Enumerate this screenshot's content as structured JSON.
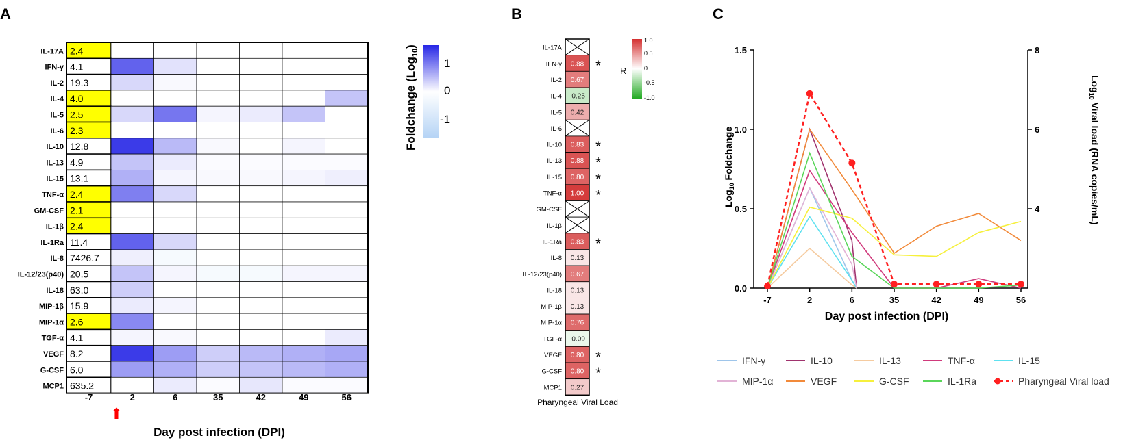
{
  "chart_data": [
    {
      "panel_label": "A",
      "type": "heatmap",
      "xlabel": "Day post infection (DPI)",
      "first_column_label": "-7",
      "columns": [
        "2",
        "6",
        "35",
        "42",
        "49",
        "56"
      ],
      "colorbar": {
        "title": "Foldchange (Log",
        "title_sub": "10",
        "title_end": ")",
        "ticks": [
          "1",
          "0",
          "-1"
        ],
        "range": [
          -1.5,
          1.5
        ]
      },
      "yellow_color": "#ffff00",
      "rows": [
        {
          "name": "IL-17A",
          "baseline": "2.4",
          "highlight": true,
          "values": [
            0,
            0,
            0,
            0,
            0,
            0
          ]
        },
        {
          "name": "IFN-γ",
          "baseline": "4.1",
          "highlight": false,
          "values": [
            0.8,
            0.15,
            0,
            0,
            0,
            0
          ]
        },
        {
          "name": "IL-2",
          "baseline": "19.3",
          "highlight": false,
          "values": [
            0.2,
            0.03,
            0,
            0,
            0,
            0
          ]
        },
        {
          "name": "IL-4",
          "baseline": "4.0",
          "highlight": true,
          "values": [
            0,
            0,
            0,
            0,
            0,
            0.3
          ]
        },
        {
          "name": "IL-5",
          "baseline": "2.5",
          "highlight": true,
          "values": [
            0.2,
            0.7,
            0.05,
            0.1,
            0.3,
            0
          ]
        },
        {
          "name": "IL-6",
          "baseline": "2.3",
          "highlight": true,
          "values": [
            0,
            0,
            0,
            0,
            0,
            0
          ]
        },
        {
          "name": "IL-10",
          "baseline": "12.8",
          "highlight": false,
          "values": [
            1.0,
            0.35,
            0.03,
            0,
            0.05,
            0
          ]
        },
        {
          "name": "IL-13",
          "baseline": "4.9",
          "highlight": false,
          "values": [
            0.3,
            0.1,
            0.02,
            0.02,
            0.02,
            0.02
          ]
        },
        {
          "name": "IL-15",
          "baseline": "13.1",
          "highlight": false,
          "values": [
            0.4,
            0.05,
            0.03,
            0.03,
            0.05,
            0.08
          ]
        },
        {
          "name": "TNF-α",
          "baseline": "2.4",
          "highlight": true,
          "values": [
            0.65,
            0.2,
            0,
            0,
            0,
            0
          ]
        },
        {
          "name": "GM-CSF",
          "baseline": "2.1",
          "highlight": true,
          "values": [
            0,
            0,
            0,
            0,
            0,
            0
          ]
        },
        {
          "name": "IL-1β",
          "baseline": "2.4",
          "highlight": true,
          "values": [
            0,
            0,
            0,
            0,
            0,
            0
          ]
        },
        {
          "name": "IL-1Ra",
          "baseline": "11.4",
          "highlight": false,
          "values": [
            0.8,
            0.2,
            0,
            0,
            0,
            0
          ]
        },
        {
          "name": "IL-8",
          "baseline": "7426.7",
          "highlight": false,
          "values": [
            0.08,
            -0.15,
            0,
            0,
            0,
            0
          ]
        },
        {
          "name": "IL-12/23(p40)",
          "baseline": "20.5",
          "highlight": false,
          "values": [
            0.3,
            0.05,
            -0.15,
            -0.15,
            0.05,
            0.05
          ]
        },
        {
          "name": "IL-18",
          "baseline": "63.0",
          "highlight": false,
          "values": [
            0.25,
            0,
            0,
            0,
            0,
            0
          ]
        },
        {
          "name": "MIP-1β",
          "baseline": "15.9",
          "highlight": false,
          "values": [
            0.1,
            0.05,
            0,
            0,
            0,
            0
          ]
        },
        {
          "name": "MIP-1α",
          "baseline": "2.6",
          "highlight": true,
          "values": [
            0.6,
            0,
            0,
            0,
            0,
            0
          ]
        },
        {
          "name": "TGF-α",
          "baseline": "4.1",
          "highlight": false,
          "values": [
            0.05,
            0.03,
            0,
            0,
            0,
            0.1
          ]
        },
        {
          "name": "VEGF",
          "baseline": "8.2",
          "highlight": false,
          "values": [
            1.0,
            0.5,
            0.25,
            0.35,
            0.4,
            0.45
          ]
        },
        {
          "name": "G-CSF",
          "baseline": "6.0",
          "highlight": false,
          "values": [
            0.5,
            0.4,
            0.25,
            0.3,
            0.35,
            0.4
          ]
        },
        {
          "name": "MCP1",
          "baseline": "635.2",
          "highlight": false,
          "values": [
            0,
            0.1,
            0.02,
            0.12,
            0.02,
            0.02
          ]
        }
      ]
    },
    {
      "panel_label": "B",
      "type": "heatmap",
      "xlabel": "Pharyngeal Viral Load",
      "colorbar": {
        "title": "R",
        "ticks": [
          "1.0",
          "0.5",
          "0",
          "-0.5",
          "-1.0"
        ],
        "range": [
          -1,
          1
        ]
      },
      "rows": [
        {
          "name": "IL-17A",
          "r": null,
          "label": "",
          "significant": false
        },
        {
          "name": "IFN-γ",
          "r": 0.88,
          "label": "0.88",
          "significant": true
        },
        {
          "name": "IL-2",
          "r": 0.67,
          "label": "0.67",
          "significant": false
        },
        {
          "name": "IL-4",
          "r": -0.25,
          "label": "-0.25",
          "significant": false
        },
        {
          "name": "IL-5",
          "r": 0.42,
          "label": "0.42",
          "significant": false
        },
        {
          "name": "IL-6",
          "r": null,
          "label": "",
          "significant": false
        },
        {
          "name": "IL-10",
          "r": 0.83,
          "label": "0.83",
          "significant": true
        },
        {
          "name": "IL-13",
          "r": 0.88,
          "label": "0.88",
          "significant": true
        },
        {
          "name": "IL-15",
          "r": 0.8,
          "label": "0.80",
          "significant": true
        },
        {
          "name": "TNF-α",
          "r": 1.0,
          "label": "1.00",
          "significant": true
        },
        {
          "name": "GM-CSF",
          "r": null,
          "label": "",
          "significant": false
        },
        {
          "name": "IL-1β",
          "r": null,
          "label": "",
          "significant": false
        },
        {
          "name": "IL-1Ra",
          "r": 0.83,
          "label": "0.83",
          "significant": true
        },
        {
          "name": "IL-8",
          "r": 0.13,
          "label": "0.13",
          "significant": false
        },
        {
          "name": "IL-12/23(p40)",
          "r": 0.67,
          "label": "0.67",
          "significant": false
        },
        {
          "name": "IL-18",
          "r": 0.13,
          "label": "0.13",
          "significant": false
        },
        {
          "name": "MIP-1β",
          "r": 0.13,
          "label": "0.13",
          "significant": false
        },
        {
          "name": "MIP-1α",
          "r": 0.76,
          "label": "0.76",
          "significant": false
        },
        {
          "name": "TGF-α",
          "r": -0.09,
          "label": "-0.09",
          "significant": false
        },
        {
          "name": "VEGF",
          "r": 0.8,
          "label": "0.80",
          "significant": true
        },
        {
          "name": "G-CSF",
          "r": 0.8,
          "label": "0.80",
          "significant": true
        },
        {
          "name": "MCP1",
          "r": 0.27,
          "label": "0.27",
          "significant": false
        }
      ],
      "star": "*"
    },
    {
      "panel_label": "C",
      "type": "line",
      "xlabel": "Day post infection (DPI)",
      "ylabel": "Log",
      "ylabel_sub": "10",
      "ylabel_end": " Foldchange",
      "y2label_pre": "Log",
      "y2label_sub": "10",
      "y2label_end": " Viral load (RNA copies/mL)",
      "categories": [
        "-7",
        "2",
        "6",
        "35",
        "42",
        "49",
        "56"
      ],
      "ylim": [
        0,
        1.5
      ],
      "yticks": [
        "0.0",
        "0.5",
        "1.0",
        "1.5"
      ],
      "y2lim": [
        2,
        8
      ],
      "y2ticks": [
        "4",
        "6",
        "8"
      ],
      "series": [
        {
          "name": "IFN-γ",
          "color": "#9ec5ea",
          "x": [
            -7,
            2,
            6,
            7
          ],
          "y": [
            0,
            0.63,
            0.05,
            0
          ]
        },
        {
          "name": "IL-10",
          "color": "#a0336e",
          "x": [
            -7,
            2,
            6,
            7
          ],
          "y": [
            0,
            1.0,
            0.3,
            0
          ]
        },
        {
          "name": "IL-13",
          "color": "#f5cba0",
          "x": [
            -7,
            2,
            6,
            7
          ],
          "y": [
            0,
            0.25,
            0.02,
            0
          ]
        },
        {
          "name": "TNF-α",
          "color": "#d03a7c",
          "x": [
            -7,
            2,
            6,
            35,
            42,
            49,
            56
          ],
          "y": [
            0,
            0.74,
            0.35,
            0,
            0,
            0.06,
            0
          ]
        },
        {
          "name": "IL-15",
          "color": "#5ee1f0",
          "x": [
            -7,
            2,
            6,
            7
          ],
          "y": [
            0,
            0.45,
            0.05,
            0
          ]
        },
        {
          "name": "MIP-1α",
          "color": "#e2b3d6",
          "x": [
            -7,
            2,
            6,
            7
          ],
          "y": [
            0,
            0.63,
            0.15,
            0
          ]
        },
        {
          "name": "VEGF",
          "color": "#f28a3a",
          "x": [
            -7,
            2,
            6,
            35,
            42,
            49,
            56
          ],
          "y": [
            0,
            1.0,
            0.62,
            0.22,
            0.39,
            0.47,
            0.3
          ]
        },
        {
          "name": "G-CSF",
          "color": "#f6f03c",
          "x": [
            -7,
            2,
            6,
            35,
            42,
            49,
            56
          ],
          "y": [
            0,
            0.51,
            0.44,
            0.21,
            0.2,
            0.35,
            0.42
          ]
        },
        {
          "name": "IL-1Ra",
          "color": "#5ad65a",
          "x": [
            -7,
            2,
            6,
            35,
            42,
            49,
            56
          ],
          "y": [
            0,
            0.85,
            0.2,
            0,
            0,
            0,
            0.02
          ]
        },
        {
          "name": "Pharyngeal Viral load",
          "color": "#ff2020",
          "axis": "right",
          "dashed": true,
          "x": [
            -7,
            2,
            6,
            35,
            42,
            49,
            56
          ],
          "y": [
            2.05,
            6.9,
            5.15,
            2.1,
            2.1,
            2.1,
            2.1
          ]
        }
      ]
    }
  ]
}
